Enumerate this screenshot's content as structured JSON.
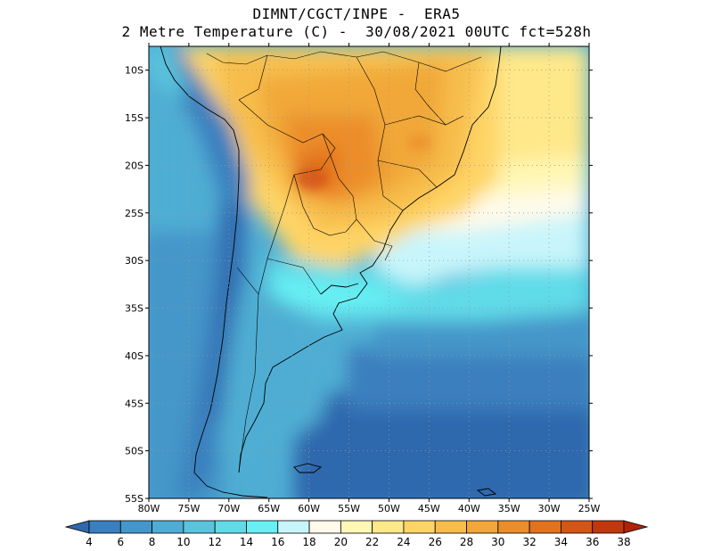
{
  "header": {
    "title_line1": "DIMNT/CGCT/INPE -  ERA5",
    "title_line2": "2 Metre Temperature (C) -  30/08/2021 00UTC fct=528h"
  },
  "map": {
    "lat_labels": [
      "10S",
      "15S",
      "20S",
      "25S",
      "30S",
      "35S",
      "40S",
      "45S",
      "50S",
      "55S"
    ],
    "lat_values": [
      -10,
      -15,
      -20,
      -25,
      -30,
      -35,
      -40,
      -45,
      -50,
      -55
    ],
    "lon_labels": [
      "80W",
      "75W",
      "70W",
      "65W",
      "60W",
      "55W",
      "50W",
      "45W",
      "40W",
      "35W",
      "30W",
      "25W"
    ],
    "lon_values": [
      -80,
      -75,
      -70,
      -65,
      -60,
      -55,
      -50,
      -45,
      -40,
      -35,
      -30,
      -25
    ],
    "lon_range": [
      -80,
      -25
    ],
    "lat_range": [
      -55,
      -7.5
    ],
    "grid": "dotted",
    "units": "C"
  },
  "colorbar": {
    "labels": [
      "4",
      "6",
      "8",
      "10",
      "12",
      "14",
      "16",
      "18",
      "20",
      "22",
      "24",
      "26",
      "28",
      "30",
      "32",
      "34",
      "36",
      "38"
    ],
    "colors": [
      "#2f67ad",
      "#3a7fbe",
      "#4596c9",
      "#4fadd3",
      "#5ac4dd",
      "#61dbe8",
      "#66f0f4",
      "#c8f5fb",
      "#fffaea",
      "#fff7b5",
      "#ffe88a",
      "#fed466",
      "#f7bd4b",
      "#f1a838",
      "#ec8d2c",
      "#e3721f",
      "#d45616",
      "#c2370e",
      "#b0230a"
    ]
  }
}
